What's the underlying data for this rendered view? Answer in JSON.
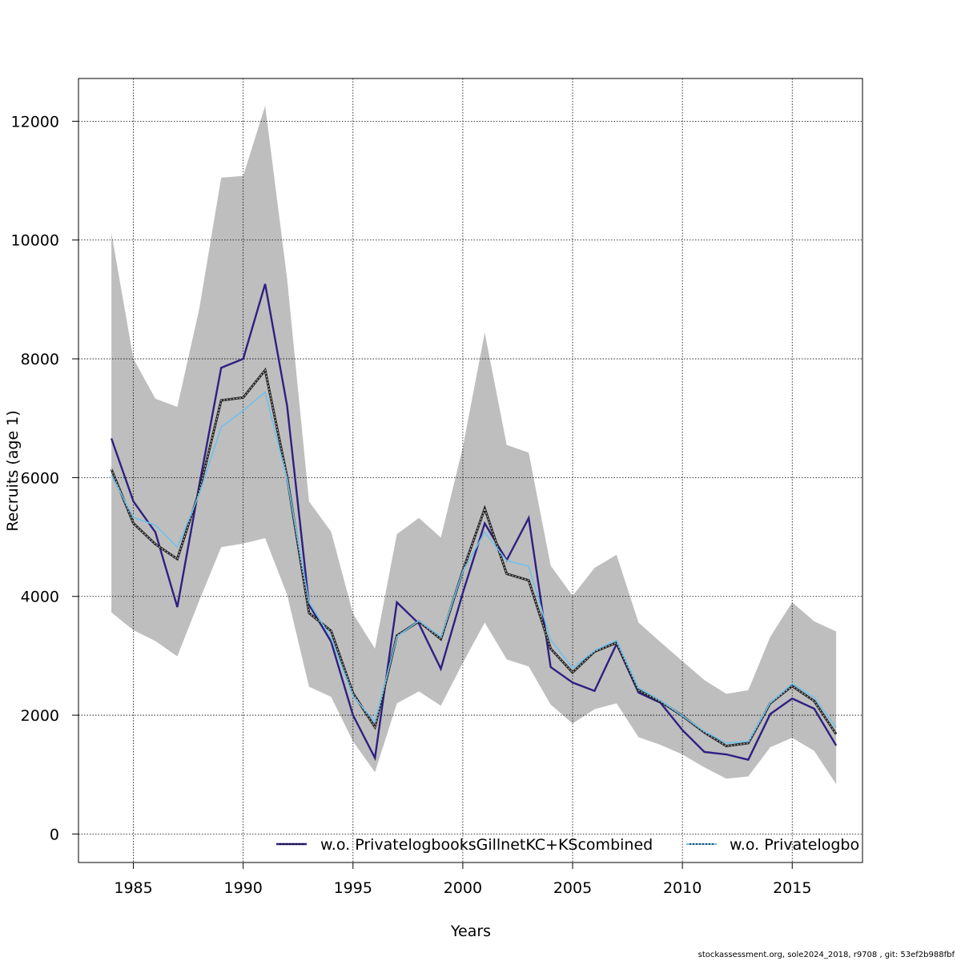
{
  "footer": "stockassessment.org, sole2024_2018, r9708 , git: 53ef2b988fbf",
  "chart_data": {
    "type": "line",
    "xlabel": "Years",
    "ylabel": "Recruits (age 1)",
    "xlim": [
      1982.5,
      2018.2
    ],
    "ylim": [
      -480,
      12720
    ],
    "x_ticks": [
      1985,
      1990,
      1995,
      2000,
      2005,
      2010,
      2015
    ],
    "y_ticks": [
      0,
      2000,
      4000,
      6000,
      8000,
      10000,
      12000
    ],
    "grid": true,
    "legend_position": "bottom (clipped)",
    "years": [
      1984,
      1985,
      1986,
      1987,
      1988,
      1989,
      1990,
      1991,
      1992,
      1993,
      1994,
      1995,
      1996,
      1997,
      1998,
      1999,
      2000,
      2001,
      2002,
      2003,
      2004,
      2005,
      2006,
      2007,
      2008,
      2009,
      2010,
      2011,
      2012,
      2013,
      2014,
      2015,
      2016,
      2017
    ],
    "confidence_band": {
      "color": "#bebebe",
      "upper": [
        10120,
        8000,
        7330,
        7190,
        8840,
        11050,
        11080,
        12260,
        9350,
        5600,
        5090,
        3710,
        3120,
        5050,
        5320,
        4990,
        6510,
        8440,
        6550,
        6420,
        4520,
        4010,
        4480,
        4700,
        3560,
        3230,
        2910,
        2590,
        2360,
        2420,
        3320,
        3900,
        3580,
        3410
      ],
      "lower": [
        3730,
        3430,
        3250,
        2990,
        3930,
        4830,
        4890,
        4980,
        4030,
        2480,
        2310,
        1560,
        1040,
        2200,
        2400,
        2160,
        2880,
        3560,
        2940,
        2820,
        2180,
        1860,
        2100,
        2200,
        1630,
        1500,
        1340,
        1120,
        930,
        970,
        1460,
        1620,
        1400,
        840
      ]
    },
    "series": [
      {
        "name": "w.o. PrivatelogbooksGillnetKC+KScombined",
        "color": "#2e1f82",
        "values": [
          6660,
          5600,
          5080,
          3820,
          5870,
          7850,
          8000,
          9260,
          7210,
          3860,
          3240,
          2000,
          1280,
          3900,
          3540,
          2780,
          4060,
          5230,
          4610,
          5320,
          2810,
          2550,
          2410,
          3200,
          2380,
          2210,
          1750,
          1380,
          1340,
          1250,
          2020,
          2280,
          2110,
          1490
        ]
      },
      {
        "name": "w.o. Privatelogbo",
        "color": "#6fc0ec",
        "values": [
          6040,
          5330,
          5200,
          4830,
          5720,
          6850,
          7130,
          7440,
          5970,
          3900,
          3300,
          2320,
          1890,
          3320,
          3590,
          3320,
          4420,
          5080,
          4600,
          4510,
          3270,
          2790,
          3090,
          3260,
          2460,
          2250,
          1990,
          1730,
          1530,
          1560,
          2210,
          2530,
          2300,
          1790
        ]
      }
    ],
    "reference_line": {
      "color": "#222222",
      "values": [
        6140,
        5230,
        4880,
        4630,
        5770,
        7300,
        7350,
        7810,
        6010,
        3720,
        3420,
        2370,
        1800,
        3340,
        3580,
        3280,
        4430,
        5480,
        4380,
        4270,
        3120,
        2720,
        3070,
        3220,
        2420,
        2230,
        1990,
        1710,
        1480,
        1530,
        2200,
        2490,
        2240,
        1680
      ]
    }
  }
}
